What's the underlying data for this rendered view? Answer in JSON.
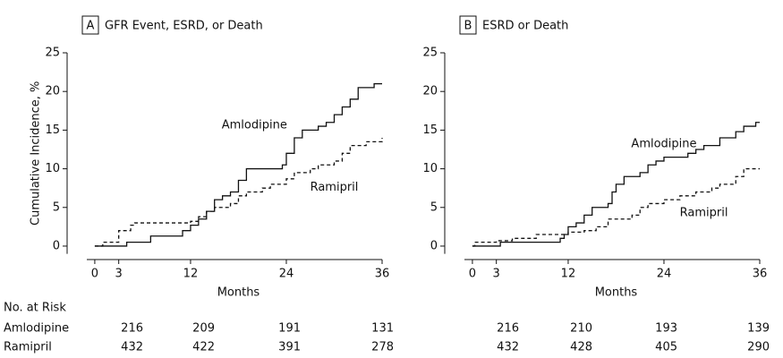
{
  "chart_data": [
    {
      "type": "line",
      "step": "post",
      "panel": "A",
      "title": "GFR Event, ESRD, or Death",
      "y_label": "Cumulative Incidence, %",
      "x_label": "Months",
      "xlim": [
        -1,
        36
      ],
      "ylim": [
        -1,
        25
      ],
      "xticks": [
        0,
        3,
        12,
        24,
        36
      ],
      "yticks": [
        0,
        5,
        10,
        15,
        20,
        25
      ],
      "series": [
        {
          "name": "Amlodipine",
          "color": "#111111",
          "line_style": "solid",
          "x": [
            0,
            4,
            7,
            11,
            12,
            13,
            14,
            15,
            16,
            17,
            18,
            19,
            23.5,
            24,
            25,
            26,
            28,
            29,
            30,
            31,
            32,
            33,
            35,
            36
          ],
          "values": [
            0,
            0.5,
            1.3,
            2,
            2.7,
            3.5,
            4.5,
            6,
            6.5,
            7,
            8.5,
            10,
            10.5,
            12,
            14,
            15,
            15.5,
            16,
            17,
            18,
            19,
            20.5,
            21,
            21
          ]
        },
        {
          "name": "Ramipril",
          "color": "#111111",
          "line_style": "dashed",
          "x": [
            0,
            1,
            3,
            4.5,
            5,
            12,
            13,
            14,
            15,
            17,
            18,
            19,
            21,
            22,
            24,
            25,
            27,
            28,
            30,
            31,
            32,
            34,
            36
          ],
          "values": [
            0,
            0.5,
            2,
            2.7,
            3,
            3.2,
            3.8,
            4.5,
            5,
            5.5,
            6.5,
            7,
            7.5,
            8,
            8.7,
            9.5,
            10,
            10.5,
            11,
            12,
            13,
            13.5,
            14
          ]
        }
      ]
    },
    {
      "type": "line",
      "step": "post",
      "panel": "B",
      "title": "ESRD or Death",
      "x_label": "Months",
      "xlim": [
        -1,
        36
      ],
      "ylim": [
        -1,
        25
      ],
      "xticks": [
        0,
        3,
        12,
        24,
        36
      ],
      "yticks": [
        0,
        5,
        10,
        15,
        20,
        25
      ],
      "series": [
        {
          "name": "Amlodipine",
          "color": "#111111",
          "line_style": "solid",
          "x": [
            0,
            3.5,
            11,
            11.5,
            12,
            13,
            14,
            15,
            17,
            17.5,
            18,
            19,
            21,
            22,
            23,
            24,
            27,
            28,
            29,
            31,
            33,
            34,
            35.5,
            36
          ],
          "values": [
            0,
            0.5,
            1,
            1.5,
            2.5,
            3,
            4,
            5,
            5.5,
            7,
            8,
            9,
            9.5,
            10.5,
            11,
            11.5,
            12,
            12.5,
            13,
            14,
            14.8,
            15.5,
            16,
            16
          ]
        },
        {
          "name": "Ramipril",
          "color": "#111111",
          "line_style": "dashed",
          "x": [
            0,
            0.3,
            3,
            5,
            8,
            12,
            14,
            15.5,
            17,
            20,
            21,
            22,
            24,
            26,
            28,
            30,
            31,
            33,
            34,
            36
          ],
          "values": [
            0,
            0.5,
            0.7,
            1,
            1.5,
            1.8,
            2,
            2.5,
            3.5,
            4,
            5,
            5.5,
            6,
            6.5,
            7,
            7.5,
            8,
            9,
            10,
            10
          ]
        }
      ]
    }
  ],
  "risk_table": {
    "title": "No. at Risk",
    "rows": [
      {
        "name": "Amlodipine",
        "values": [
          [
            216,
            209,
            191,
            131
          ],
          [
            216,
            210,
            193,
            139
          ]
        ]
      },
      {
        "name": "Ramipril",
        "values": [
          [
            432,
            422,
            391,
            278
          ],
          [
            432,
            428,
            405,
            290
          ]
        ]
      }
    ]
  }
}
